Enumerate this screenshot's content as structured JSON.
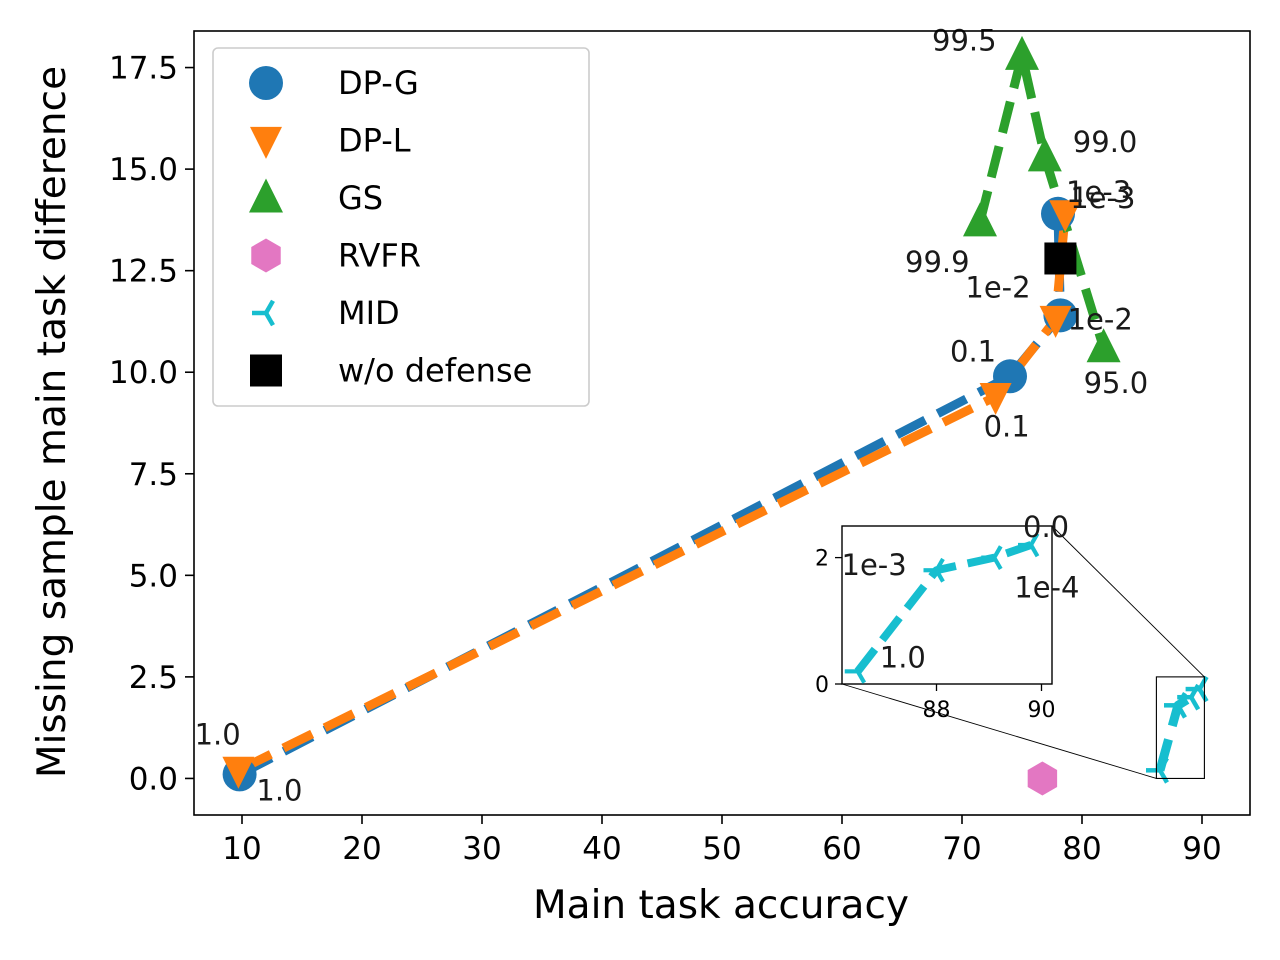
{
  "chart_data": {
    "type": "line",
    "title": "",
    "xlabel": "Main task accuracy",
    "ylabel": "Missing sample main task difference",
    "xlim": [
      6,
      94
    ],
    "ylim": [
      -0.9,
      18.4
    ],
    "x_ticks": [
      10,
      20,
      30,
      40,
      50,
      60,
      70,
      80,
      90
    ],
    "y_ticks": [
      0.0,
      2.5,
      5.0,
      7.5,
      10.0,
      12.5,
      15.0,
      17.5
    ],
    "x_tick_labels": [
      "10",
      "20",
      "30",
      "40",
      "50",
      "60",
      "70",
      "80",
      "90"
    ],
    "y_tick_labels": [
      "0.0",
      "2.5",
      "5.0",
      "7.5",
      "10.0",
      "12.5",
      "15.0",
      "17.5"
    ],
    "grid": false,
    "legend_position": "upper-left",
    "series": [
      {
        "name": "DP-G",
        "color": "#1f77b4",
        "marker": "circle",
        "line": "dashed",
        "x": [
          78.0,
          78.2,
          74.0,
          9.8
        ],
        "y": [
          13.9,
          11.4,
          9.9,
          0.1
        ],
        "point_labels": [
          "1e-3",
          "1e-2",
          "0.1",
          "1.0"
        ]
      },
      {
        "name": "DP-L",
        "color": "#ff7f0e",
        "marker": "triangle-down",
        "line": "dashed",
        "x": [
          78.6,
          77.8,
          72.8,
          9.7
        ],
        "y": [
          13.9,
          11.3,
          9.4,
          0.2
        ],
        "point_labels": [
          "1e-3",
          "1e-2",
          "0.1",
          "1.0"
        ]
      },
      {
        "name": "GS",
        "color": "#2ca02c",
        "marker": "triangle-up",
        "line": "dashed",
        "x": [
          71.5,
          75.0,
          76.9,
          81.8
        ],
        "y": [
          13.7,
          17.8,
          15.3,
          10.6
        ],
        "point_labels": [
          "99.9",
          "99.5",
          "99.0",
          "95.0"
        ]
      },
      {
        "name": "RVFR",
        "color": "#e377c2",
        "marker": "hexagon",
        "line": "none",
        "x": [
          76.7
        ],
        "y": [
          0.0
        ],
        "point_labels": []
      },
      {
        "name": "MID",
        "color": "#17becf",
        "marker": "tri-left",
        "line": "dashed",
        "x": [
          86.5,
          88.0,
          89.1,
          89.8
        ],
        "y": [
          0.2,
          1.8,
          2.0,
          2.2
        ],
        "point_labels": [
          "1.0",
          "1e-3",
          "1e-4",
          "0.0"
        ]
      },
      {
        "name": "w/o defense",
        "color": "#000000",
        "marker": "square",
        "line": "none",
        "x": [
          78.2
        ],
        "y": [
          12.8
        ],
        "point_labels": []
      }
    ],
    "inset": {
      "xlim": [
        86.2,
        90.2
      ],
      "ylim": [
        0,
        2.5
      ],
      "x_ticks": [
        88,
        90
      ],
      "y_ticks": [
        0,
        2
      ],
      "x_tick_labels": [
        "88",
        "90"
      ],
      "y_tick_labels": [
        "0",
        "2"
      ],
      "series": "MID"
    }
  }
}
